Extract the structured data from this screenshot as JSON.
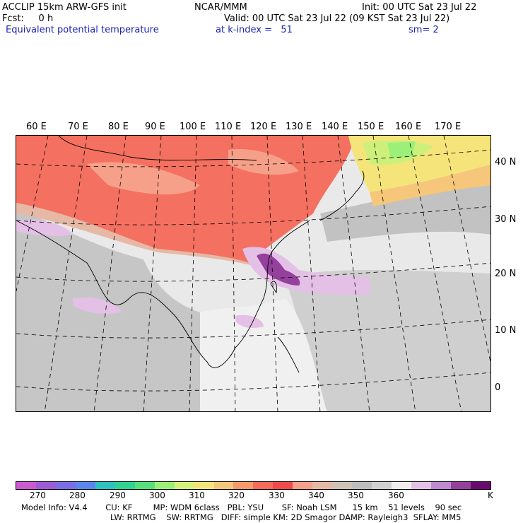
{
  "header": {
    "left_line1": "ACCLIP 15km ARW-GFS init",
    "center_line1": "NCAR/MMM",
    "right_line1": "Init: 00 UTC Sat 23 Jul 22",
    "left_line2": "Fcst:     0 h",
    "right_line2": "Valid: 00 UTC Sat 23 Jul 22 (09 KST Sat 23 Jul 22)",
    "field_name": "Equivalent potential temperature",
    "level_text": "at k-index =   51",
    "smooth_text": "sm= 2"
  },
  "longitude_labels": [
    "60 E",
    "70 E",
    "80 E",
    "90 E",
    "100 E",
    "110 E",
    "120 E",
    "130 E",
    "140 E",
    "150 E",
    "160 E",
    "170 E"
  ],
  "latitude_labels": [
    "40 N",
    "30 N",
    "20 N",
    "10 N",
    "0"
  ],
  "colorbar": {
    "colors": [
      "#c95ad0",
      "#9f5ad8",
      "#7a6ee8",
      "#5a86ee",
      "#2cc4c0",
      "#30d490",
      "#56e07a",
      "#9cf07a",
      "#d6f27a",
      "#f4e47a",
      "#f6c67a",
      "#f69a6a",
      "#f66a5a",
      "#f24a4a",
      "#f6a08a",
      "#e6b8a6",
      "#cfc2b6",
      "#bdbdbd",
      "#d0d0d0",
      "#efefef",
      "#e4bfe6",
      "#c08ad0",
      "#94409c",
      "#6a0a6e"
    ],
    "labels": [
      "270",
      "280",
      "290",
      "300",
      "310",
      "320",
      "330",
      "340",
      "350",
      "360"
    ],
    "unit": "K"
  },
  "footer": {
    "line1": "Model Info: V4.4       CU: KF        MP: WDM 6class   PBL: YSU       SF: Noah LSM      15 km    51 levels    90 sec",
    "line2": "LW: RRTMG    SW: RRTMG   DIFF: simple KM: 2D Smagor DAMP: Rayleigh3  SFLAY: MM5"
  }
}
